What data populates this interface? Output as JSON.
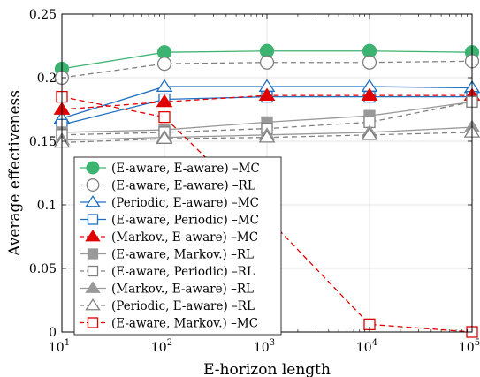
{
  "chart_data": {
    "type": "line",
    "title": "",
    "xlabel": "E-horizon length",
    "ylabel": "Average effectiveness",
    "x_scale": "log",
    "x": [
      10,
      100,
      1000,
      10000,
      100000
    ],
    "x_tick_labels": [
      {
        "base": "10",
        "exp": "1"
      },
      {
        "base": "10",
        "exp": "2"
      },
      {
        "base": "10",
        "exp": "3"
      },
      {
        "base": "10",
        "exp": "4"
      },
      {
        "base": "10",
        "exp": "5"
      }
    ],
    "xlim": [
      10,
      100000
    ],
    "ylim": [
      0,
      0.25
    ],
    "y_ticks": [
      0,
      0.05,
      0.1,
      0.15,
      0.2,
      0.25
    ],
    "y_tick_labels": [
      "0",
      "0.05",
      "0.1",
      "0.15",
      "0.2",
      "0.25"
    ],
    "grid": true,
    "legend_position": "lower-left",
    "series": [
      {
        "name": "(E-aware, E-aware) –MC",
        "color": "#3cb371",
        "marker": "circle",
        "filled": true,
        "dashed": false,
        "values": [
          0.207,
          0.22,
          0.221,
          0.221,
          0.22
        ]
      },
      {
        "name": "(E-aware, E-aware) –RL",
        "color": "#808080",
        "marker": "circle",
        "filled": false,
        "dashed": true,
        "values": [
          0.2,
          0.211,
          0.212,
          0.212,
          0.213
        ]
      },
      {
        "name": "(Periodic, E-aware) –MC",
        "color": "#1f6fc0",
        "marker": "triangle",
        "filled": false,
        "dashed": false,
        "values": [
          0.168,
          0.193,
          0.193,
          0.193,
          0.192
        ]
      },
      {
        "name": "(E-aware, Periodic) –MC",
        "color": "#1f6fc0",
        "marker": "square",
        "filled": false,
        "dashed": false,
        "values": [
          0.163,
          0.183,
          0.185,
          0.185,
          0.185
        ]
      },
      {
        "name": "(Markov., E-aware) –MC",
        "color": "#e00000",
        "marker": "triangle",
        "filled": true,
        "dashed": true,
        "values": [
          0.175,
          0.181,
          0.186,
          0.186,
          0.186
        ]
      },
      {
        "name": "(E-aware, Markov.) –RL",
        "color": "#999999",
        "marker": "square",
        "filled": true,
        "dashed": false,
        "values": [
          0.157,
          0.159,
          0.165,
          0.17,
          0.181
        ]
      },
      {
        "name": "(E-aware, Periodic) –RL",
        "color": "#808080",
        "marker": "square",
        "filled": false,
        "dashed": true,
        "values": [
          0.155,
          0.157,
          0.16,
          0.165,
          0.181
        ]
      },
      {
        "name": "(Markov., E-aware) –RL",
        "color": "#999999",
        "marker": "triangle",
        "filled": true,
        "dashed": false,
        "values": [
          0.151,
          0.153,
          0.155,
          0.157,
          0.161
        ]
      },
      {
        "name": "(Periodic, E-aware) –RL",
        "color": "#808080",
        "marker": "triangle",
        "filled": false,
        "dashed": true,
        "values": [
          0.149,
          0.152,
          0.153,
          0.155,
          0.157
        ]
      },
      {
        "name": "(E-aware, Markov.) –MC",
        "color": "#e00000",
        "marker": "square",
        "filled": false,
        "dashed": true,
        "values": [
          0.185,
          0.169,
          0.09,
          0.006,
          0.0
        ]
      }
    ]
  }
}
